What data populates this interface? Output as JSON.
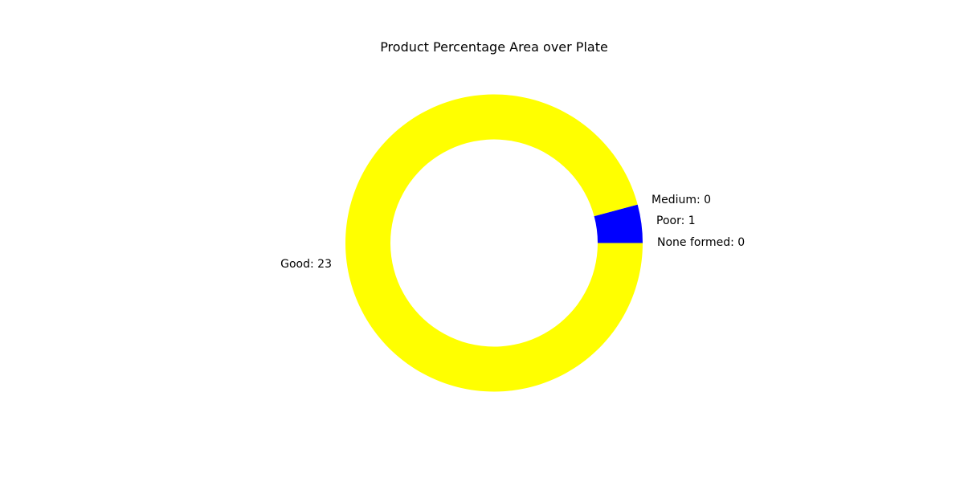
{
  "chart_data": {
    "type": "pie",
    "title": "Product Percentage Area over Plate",
    "start_angle_deg": 0,
    "direction": "counterclockwise",
    "slices": [
      {
        "name": "None formed",
        "value": 0,
        "label": "None formed: 0",
        "color": "#000000"
      },
      {
        "name": "Poor",
        "value": 1,
        "label": "Poor: 1",
        "color": "#0000ff"
      },
      {
        "name": "Medium",
        "value": 0,
        "label": "Medium: 0",
        "color": "#ff0000"
      },
      {
        "name": "Good",
        "value": 23,
        "label": "Good: 23",
        "color": "#ffff00"
      }
    ],
    "legend": false
  }
}
